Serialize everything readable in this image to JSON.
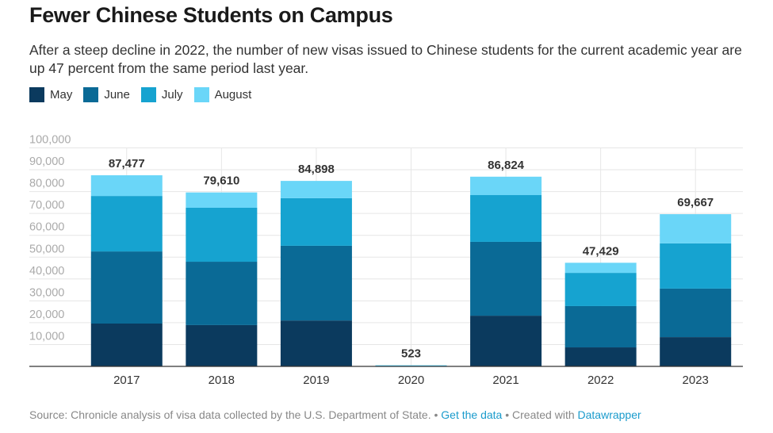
{
  "title": "Fewer Chinese Students on Campus",
  "subtitle": "After a steep decline in 2022, the number of new visas issued to Chinese students for the current academic year are up 47 percent from the same period last year.",
  "footer": {
    "source": "Source: Chronicle analysis of visa data collected by the U.S. Department of State. •",
    "get_data": "Get the data",
    "sep": "• Created with",
    "datawrapper": "Datawrapper"
  },
  "chart_data": {
    "type": "bar",
    "stacked": true,
    "categories": [
      "2017",
      "2018",
      "2019",
      "2020",
      "2021",
      "2022",
      "2023"
    ],
    "series": [
      {
        "name": "May",
        "color": "#0b3a5e",
        "values": [
          19600,
          18900,
          21000,
          100,
          23200,
          8700,
          13400
        ]
      },
      {
        "name": "June",
        "color": "#0a6a96",
        "values": [
          33000,
          29000,
          34200,
          150,
          33800,
          18900,
          22200
        ]
      },
      {
        "name": "July",
        "color": "#16a3d0",
        "values": [
          25400,
          24700,
          21800,
          200,
          21400,
          15200,
          20700
        ]
      },
      {
        "name": "August",
        "color": "#6ad6f8",
        "values": [
          9477,
          7010,
          7898,
          73,
          8424,
          4629,
          13367
        ]
      }
    ],
    "totals": [
      "87,477",
      "79,610",
      "84,898",
      "523",
      "86,824",
      "47,429",
      "69,667"
    ],
    "ylim": [
      0,
      100000
    ],
    "yticks": [
      "10,000",
      "20,000",
      "30,000",
      "40,000",
      "50,000",
      "60,000",
      "70,000",
      "80,000",
      "90,000",
      "100,000"
    ],
    "legend": "top-left",
    "grid": true
  }
}
